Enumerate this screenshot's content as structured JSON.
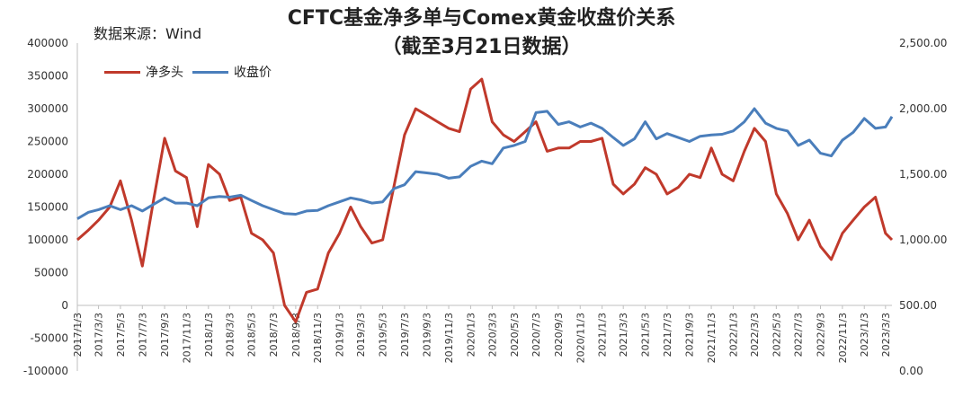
{
  "source_text": "数据来源：Wind",
  "chart_data": {
    "type": "line",
    "title": "CFTC基金净多单与Comex黄金收盘价关系",
    "subtitle": "（截至3月21日数据）",
    "legend_position": "top-left",
    "grid": false,
    "left_axis": {
      "min": -100000,
      "max": 400000,
      "ticks": [
        "-100000",
        "-50000",
        "0",
        "50000",
        "100000",
        "150000",
        "200000",
        "250000",
        "300000",
        "350000",
        "400000"
      ]
    },
    "right_axis": {
      "min": 0,
      "max": 2500,
      "ticks": [
        "0.00",
        "500.00",
        "1,000.00",
        "1,500.00",
        "2,000.00",
        "2,500.00"
      ]
    },
    "x_ticks": [
      "2017/1/3",
      "2017/3/3",
      "2017/5/3",
      "2017/7/3",
      "2017/9/3",
      "2017/11/3",
      "2018/1/3",
      "2018/3/3",
      "2018/5/3",
      "2018/7/3",
      "2018/9/3",
      "2018/11/3",
      "2019/1/3",
      "2019/3/3",
      "2019/5/3",
      "2019/7/3",
      "2019/9/3",
      "2019/11/3",
      "2020/1/3",
      "2020/3/3",
      "2020/5/3",
      "2020/7/3",
      "2020/9/3",
      "2020/11/3",
      "2021/1/3",
      "2021/3/3",
      "2021/5/3",
      "2021/7/3",
      "2021/9/3",
      "2021/11/3",
      "2022/1/3",
      "2022/3/3",
      "2022/5/3",
      "2022/7/3",
      "2022/9/3",
      "2022/11/3",
      "2023/1/3",
      "2023/3/3"
    ],
    "series": [
      {
        "name": "净多头",
        "color": "#c0392b",
        "axis": "left",
        "points": [
          [
            "2017/1/3",
            100000
          ],
          [
            "2017/2/3",
            115000
          ],
          [
            "2017/3/3",
            130000
          ],
          [
            "2017/4/3",
            150000
          ],
          [
            "2017/5/3",
            190000
          ],
          [
            "2017/6/3",
            130000
          ],
          [
            "2017/7/3",
            60000
          ],
          [
            "2017/8/3",
            160000
          ],
          [
            "2017/9/3",
            255000
          ],
          [
            "2017/10/3",
            205000
          ],
          [
            "2017/11/3",
            195000
          ],
          [
            "2017/12/3",
            120000
          ],
          [
            "2018/1/3",
            215000
          ],
          [
            "2018/2/3",
            200000
          ],
          [
            "2018/3/3",
            160000
          ],
          [
            "2018/4/3",
            165000
          ],
          [
            "2018/5/3",
            110000
          ],
          [
            "2018/6/3",
            100000
          ],
          [
            "2018/7/3",
            80000
          ],
          [
            "2018/8/3",
            0
          ],
          [
            "2018/9/3",
            -25000
          ],
          [
            "2018/10/3",
            20000
          ],
          [
            "2018/11/3",
            25000
          ],
          [
            "2018/12/3",
            80000
          ],
          [
            "2019/1/3",
            110000
          ],
          [
            "2019/2/3",
            150000
          ],
          [
            "2019/3/3",
            120000
          ],
          [
            "2019/4/3",
            95000
          ],
          [
            "2019/5/3",
            100000
          ],
          [
            "2019/6/3",
            180000
          ],
          [
            "2019/7/3",
            260000
          ],
          [
            "2019/8/3",
            300000
          ],
          [
            "2019/9/3",
            290000
          ],
          [
            "2019/10/3",
            280000
          ],
          [
            "2019/11/3",
            270000
          ],
          [
            "2019/12/3",
            265000
          ],
          [
            "2020/1/3",
            330000
          ],
          [
            "2020/2/3",
            345000
          ],
          [
            "2020/3/3",
            280000
          ],
          [
            "2020/4/3",
            260000
          ],
          [
            "2020/5/3",
            250000
          ],
          [
            "2020/6/3",
            265000
          ],
          [
            "2020/7/3",
            280000
          ],
          [
            "2020/8/3",
            235000
          ],
          [
            "2020/9/3",
            240000
          ],
          [
            "2020/10/3",
            240000
          ],
          [
            "2020/11/3",
            250000
          ],
          [
            "2020/12/3",
            250000
          ],
          [
            "2021/1/3",
            255000
          ],
          [
            "2021/2/3",
            185000
          ],
          [
            "2021/3/3",
            170000
          ],
          [
            "2021/4/3",
            185000
          ],
          [
            "2021/5/3",
            210000
          ],
          [
            "2021/6/3",
            200000
          ],
          [
            "2021/7/3",
            170000
          ],
          [
            "2021/8/3",
            180000
          ],
          [
            "2021/9/3",
            200000
          ],
          [
            "2021/10/3",
            195000
          ],
          [
            "2021/11/3",
            240000
          ],
          [
            "2021/12/3",
            200000
          ],
          [
            "2022/1/3",
            190000
          ],
          [
            "2022/2/3",
            235000
          ],
          [
            "2022/3/3",
            270000
          ],
          [
            "2022/4/3",
            250000
          ],
          [
            "2022/5/3",
            170000
          ],
          [
            "2022/6/3",
            140000
          ],
          [
            "2022/7/3",
            100000
          ],
          [
            "2022/8/3",
            130000
          ],
          [
            "2022/9/3",
            90000
          ],
          [
            "2022/10/3",
            70000
          ],
          [
            "2022/11/3",
            110000
          ],
          [
            "2022/12/3",
            130000
          ],
          [
            "2023/1/3",
            150000
          ],
          [
            "2023/2/3",
            165000
          ],
          [
            "2023/3/3",
            110000
          ],
          [
            "2023/3/21",
            100000
          ]
        ]
      },
      {
        "name": "收盘价",
        "color": "#4a7ebb",
        "axis": "right",
        "points": [
          [
            "2017/1/3",
            1160
          ],
          [
            "2017/2/3",
            1210
          ],
          [
            "2017/3/3",
            1230
          ],
          [
            "2017/4/3",
            1260
          ],
          [
            "2017/5/3",
            1230
          ],
          [
            "2017/6/3",
            1260
          ],
          [
            "2017/7/3",
            1220
          ],
          [
            "2017/8/3",
            1270
          ],
          [
            "2017/9/3",
            1320
          ],
          [
            "2017/10/3",
            1280
          ],
          [
            "2017/11/3",
            1280
          ],
          [
            "2017/12/3",
            1260
          ],
          [
            "2018/1/3",
            1320
          ],
          [
            "2018/2/3",
            1330
          ],
          [
            "2018/3/3",
            1325
          ],
          [
            "2018/4/3",
            1340
          ],
          [
            "2018/5/3",
            1300
          ],
          [
            "2018/6/3",
            1260
          ],
          [
            "2018/7/3",
            1230
          ],
          [
            "2018/8/3",
            1200
          ],
          [
            "2018/9/3",
            1195
          ],
          [
            "2018/10/3",
            1220
          ],
          [
            "2018/11/3",
            1225
          ],
          [
            "2018/12/3",
            1260
          ],
          [
            "2019/1/3",
            1290
          ],
          [
            "2019/2/3",
            1320
          ],
          [
            "2019/3/3",
            1305
          ],
          [
            "2019/4/3",
            1280
          ],
          [
            "2019/5/3",
            1290
          ],
          [
            "2019/6/3",
            1390
          ],
          [
            "2019/7/3",
            1420
          ],
          [
            "2019/8/3",
            1520
          ],
          [
            "2019/9/3",
            1510
          ],
          [
            "2019/10/3",
            1500
          ],
          [
            "2019/11/3",
            1470
          ],
          [
            "2019/12/3",
            1480
          ],
          [
            "2020/1/3",
            1560
          ],
          [
            "2020/2/3",
            1600
          ],
          [
            "2020/3/3",
            1580
          ],
          [
            "2020/4/3",
            1700
          ],
          [
            "2020/5/3",
            1720
          ],
          [
            "2020/6/3",
            1750
          ],
          [
            "2020/7/3",
            1970
          ],
          [
            "2020/8/3",
            1980
          ],
          [
            "2020/9/3",
            1880
          ],
          [
            "2020/10/3",
            1900
          ],
          [
            "2020/11/3",
            1860
          ],
          [
            "2020/12/3",
            1890
          ],
          [
            "2021/1/3",
            1850
          ],
          [
            "2021/2/3",
            1780
          ],
          [
            "2021/3/3",
            1720
          ],
          [
            "2021/4/3",
            1770
          ],
          [
            "2021/5/3",
            1900
          ],
          [
            "2021/6/3",
            1770
          ],
          [
            "2021/7/3",
            1810
          ],
          [
            "2021/8/3",
            1780
          ],
          [
            "2021/9/3",
            1750
          ],
          [
            "2021/10/3",
            1790
          ],
          [
            "2021/11/3",
            1800
          ],
          [
            "2021/12/3",
            1805
          ],
          [
            "2022/1/3",
            1830
          ],
          [
            "2022/2/3",
            1900
          ],
          [
            "2022/3/3",
            2000
          ],
          [
            "2022/4/3",
            1890
          ],
          [
            "2022/5/3",
            1850
          ],
          [
            "2022/6/3",
            1830
          ],
          [
            "2022/7/3",
            1720
          ],
          [
            "2022/8/3",
            1760
          ],
          [
            "2022/9/3",
            1660
          ],
          [
            "2022/10/3",
            1640
          ],
          [
            "2022/11/3",
            1760
          ],
          [
            "2022/12/3",
            1820
          ],
          [
            "2023/1/3",
            1925
          ],
          [
            "2023/2/3",
            1850
          ],
          [
            "2023/3/3",
            1860
          ],
          [
            "2023/3/21",
            1940
          ]
        ]
      }
    ]
  }
}
